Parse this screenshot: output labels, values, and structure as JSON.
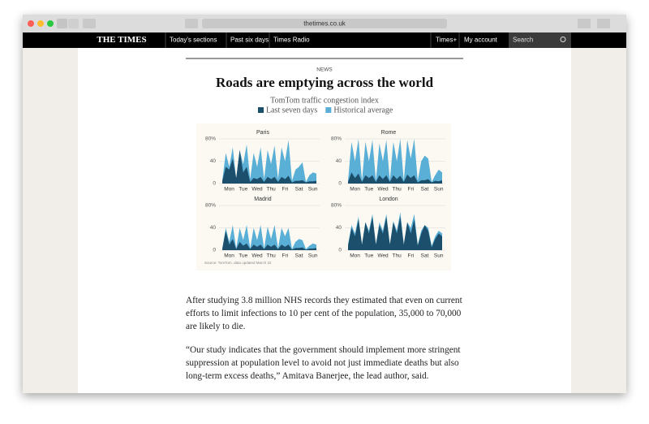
{
  "browser": {
    "url": "thetimes.co.uk"
  },
  "nav": {
    "logo": "THE TIMES",
    "items": [
      "Today's sections",
      "Past six days",
      "Times Radio"
    ],
    "right": [
      "Times+",
      "My account"
    ],
    "search": "Search"
  },
  "article": {
    "kicker": "NEWS",
    "title": "Roads are emptying across the world",
    "figure_title": "TomTom traffic congestion index",
    "source": "Source: TomTom, data updated March 22",
    "paragraphs": [
      "After studying 3.8 million NHS records they estimated that even on current efforts to limit infections to 10 per cent of the population, 35,000 to 70,000 are likely to die.",
      "“Our study indicates that the government should implement more stringent suppression at population level to avoid not just immediate deaths but also long-term excess deaths,” Amitava Banerjee, the lead author, said."
    ]
  },
  "chart_data": [
    {
      "type": "area",
      "title": "Paris",
      "categories": [
        null,
        null,
        "Mon",
        null,
        null,
        null,
        "Tue",
        null,
        null,
        null,
        "Wed",
        null,
        null,
        null,
        "Thu",
        null,
        null,
        null,
        "Fri",
        null,
        null,
        null,
        "Sat",
        null,
        null,
        null,
        "Sun",
        null
      ],
      "ylim": [
        0,
        85
      ],
      "yticks": [
        0,
        40,
        {
          "value": 80,
          "label": "80%"
        }
      ],
      "grid": true,
      "series": [
        {
          "name": "Historical average",
          "color": "#5aafd6",
          "values": [
            5,
            55,
            30,
            65,
            8,
            60,
            35,
            70,
            8,
            55,
            30,
            65,
            8,
            60,
            35,
            68,
            8,
            65,
            40,
            78,
            5,
            25,
            30,
            38,
            3,
            15,
            20,
            18
          ]
        },
        {
          "name": "Last seven days",
          "color": "#1c4f6c",
          "values": [
            5,
            30,
            25,
            45,
            10,
            60,
            20,
            30,
            3,
            10,
            8,
            12,
            3,
            12,
            8,
            12,
            3,
            12,
            8,
            14,
            2,
            5,
            5,
            6,
            2,
            4,
            4,
            5
          ]
        }
      ]
    },
    {
      "type": "area",
      "title": "Rome",
      "categories": [
        null,
        null,
        "Mon",
        null,
        null,
        null,
        "Tue",
        null,
        null,
        null,
        "Wed",
        null,
        null,
        null,
        "Thu",
        null,
        null,
        null,
        "Fri",
        null,
        null,
        null,
        "Sat",
        null,
        null,
        null,
        "Sun",
        null
      ],
      "ylim": [
        0,
        85
      ],
      "yticks": [
        0,
        40,
        {
          "value": 80,
          "label": "80%"
        }
      ],
      "grid": true,
      "series": [
        {
          "color": "#5aafd6",
          "values": [
            5,
            75,
            40,
            80,
            5,
            75,
            40,
            78,
            5,
            72,
            40,
            78,
            5,
            75,
            40,
            80,
            5,
            78,
            45,
            80,
            5,
            40,
            50,
            45,
            3,
            15,
            25,
            20
          ]
        },
        {
          "color": "#1c4f6c",
          "values": [
            3,
            20,
            10,
            18,
            3,
            15,
            10,
            15,
            3,
            15,
            8,
            15,
            3,
            15,
            8,
            14,
            3,
            16,
            10,
            15,
            2,
            6,
            6,
            8,
            2,
            5,
            4,
            6
          ]
        }
      ]
    },
    {
      "type": "area",
      "title": "Madrid",
      "categories": [
        null,
        null,
        "Mon",
        null,
        null,
        null,
        "Tue",
        null,
        null,
        null,
        "Wed",
        null,
        null,
        null,
        "Thu",
        null,
        null,
        null,
        "Fri",
        null,
        null,
        null,
        "Sat",
        null,
        null,
        null,
        "Sun",
        null
      ],
      "ylim": [
        0,
        85
      ],
      "yticks": [
        0,
        40,
        {
          "value": 80,
          "label": "80%"
        }
      ],
      "grid": true,
      "series": [
        {
          "color": "#5aafd6",
          "values": [
            3,
            40,
            15,
            45,
            3,
            40,
            18,
            45,
            3,
            40,
            18,
            45,
            3,
            42,
            20,
            45,
            3,
            40,
            25,
            40,
            2,
            15,
            20,
            18,
            2,
            8,
            12,
            10
          ]
        },
        {
          "color": "#1c4f6c",
          "values": [
            2,
            35,
            10,
            20,
            2,
            15,
            8,
            12,
            2,
            10,
            6,
            10,
            2,
            10,
            6,
            10,
            2,
            10,
            6,
            10,
            1,
            4,
            4,
            5,
            1,
            3,
            3,
            4
          ]
        }
      ]
    },
    {
      "type": "area",
      "title": "London",
      "categories": [
        null,
        null,
        "Mon",
        null,
        null,
        null,
        "Tue",
        null,
        null,
        null,
        "Wed",
        null,
        null,
        null,
        "Thu",
        null,
        null,
        null,
        "Fri",
        null,
        null,
        null,
        "Sat",
        null,
        null,
        null,
        "Sun",
        null
      ],
      "ylim": [
        0,
        85
      ],
      "yticks": [
        0,
        40,
        {
          "value": 80,
          "label": "80%"
        }
      ],
      "grid": true,
      "series": [
        {
          "color": "#5aafd6",
          "values": [
            10,
            45,
            30,
            60,
            10,
            50,
            35,
            65,
            10,
            50,
            35,
            65,
            10,
            52,
            35,
            68,
            10,
            50,
            40,
            65,
            10,
            35,
            45,
            40,
            8,
            25,
            35,
            30
          ]
        },
        {
          "color": "#1c4f6c",
          "values": [
            8,
            40,
            25,
            55,
            10,
            50,
            30,
            60,
            10,
            45,
            30,
            60,
            10,
            50,
            30,
            60,
            10,
            50,
            30,
            55,
            8,
            30,
            45,
            35,
            5,
            20,
            30,
            25
          ]
        }
      ]
    }
  ]
}
